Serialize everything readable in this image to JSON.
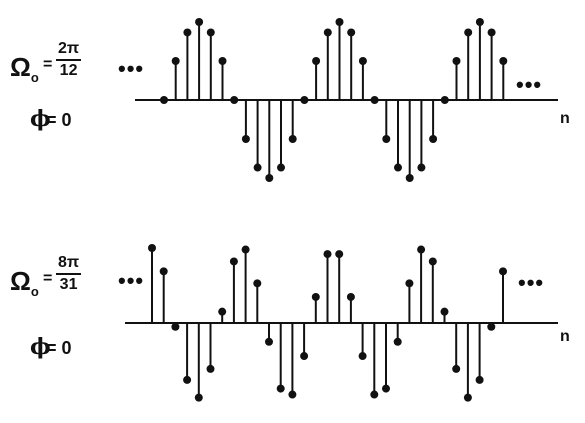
{
  "panels": [
    {
      "omega_symbol": "Ω",
      "omega_sub": "o",
      "equals": "=",
      "frac_num": "2π",
      "frac_den": "12",
      "phi_symbol": "ϕ",
      "phi_eq": "= 0",
      "dots_left": "•••",
      "dots_right": "•••",
      "axis_label": "n"
    },
    {
      "omega_symbol": "Ω",
      "omega_sub": "o",
      "equals": "=",
      "frac_num": "8π",
      "frac_den": "31",
      "phi_symbol": "ϕ",
      "phi_eq": "= 0",
      "dots_left": "•••",
      "dots_right": "•••",
      "axis_label": "n"
    }
  ],
  "colors": {
    "ink": "#111111",
    "background": "#ffffff"
  }
}
